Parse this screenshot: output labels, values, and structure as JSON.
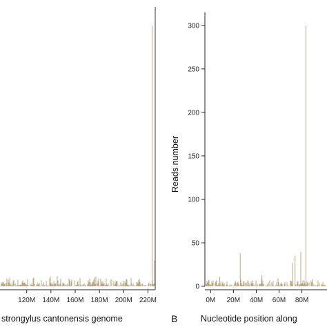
{
  "panels": {
    "left": {
      "letter": "",
      "xlabel": "strongylus cantonensis genome"
    },
    "right": {
      "letter": "B",
      "xlabel": "Nucleotide position along",
      "ylabel": "Reads number"
    }
  },
  "chart_data": [
    {
      "type": "bar",
      "panel": "left",
      "title": "",
      "xlabel": "strongylus cantonensis genome",
      "ylabel": "",
      "bar_color": "#b8a887",
      "x_unit": "M",
      "x_ticks": [
        120,
        140,
        160,
        180,
        200,
        220
      ],
      "x_tick_labels": [
        "120M",
        "140M",
        "160M",
        "180M",
        "200M",
        "220M"
      ],
      "xlim": [
        98,
        226
      ],
      "ylim": [
        0,
        315
      ],
      "grid": false,
      "baseline_noise": [
        0,
        12
      ],
      "spikes": [
        {
          "x": 223.5,
          "y": 300
        },
        {
          "x": 225.5,
          "y": 30
        }
      ]
    },
    {
      "type": "bar",
      "panel": "right",
      "title": "",
      "xlabel": "Nucleotide position along",
      "ylabel": "Reads number",
      "bar_color": "#b8a887",
      "x_unit": "M",
      "x_ticks": [
        0,
        20,
        40,
        60,
        80
      ],
      "x_tick_labels": [
        "0M",
        "20M",
        "40M",
        "60M",
        "80M"
      ],
      "y_ticks": [
        0,
        50,
        100,
        150,
        200,
        250,
        300
      ],
      "y_tick_labels": [
        "0",
        "50",
        "100",
        "150",
        "200",
        "250",
        "300"
      ],
      "xlim": [
        -5,
        102
      ],
      "ylim": [
        0,
        315
      ],
      "grid": false,
      "baseline_noise": [
        0,
        10
      ],
      "spikes": [
        {
          "x": 26,
          "y": 38
        },
        {
          "x": 72,
          "y": 27
        },
        {
          "x": 74,
          "y": 35
        },
        {
          "x": 79,
          "y": 40
        },
        {
          "x": 83.5,
          "y": 300
        },
        {
          "x": 45,
          "y": 13
        },
        {
          "x": 8,
          "y": 11
        }
      ]
    }
  ]
}
